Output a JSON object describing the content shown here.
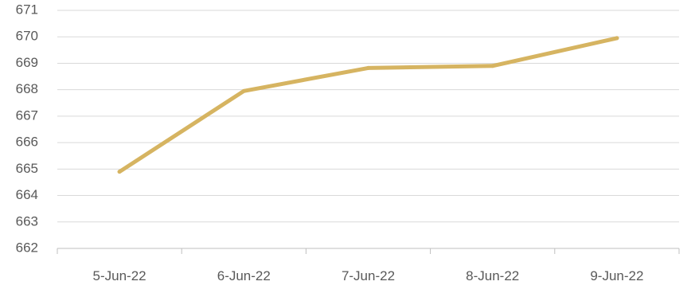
{
  "chart_data": {
    "type": "line",
    "title": "",
    "xlabel": "",
    "ylabel": "",
    "categories": [
      "5-Jun-22",
      "6-Jun-22",
      "7-Jun-22",
      "8-Jun-22",
      "9-Jun-22"
    ],
    "series": [
      {
        "values": [
          664.9,
          667.95,
          668.82,
          668.9,
          669.95
        ],
        "color": "#d6b461"
      }
    ],
    "ylim": [
      662,
      671
    ],
    "yticks": [
      "662",
      "663",
      "664",
      "665",
      "666",
      "667",
      "668",
      "669",
      "670",
      "671"
    ],
    "grid": true,
    "legend": "none"
  }
}
